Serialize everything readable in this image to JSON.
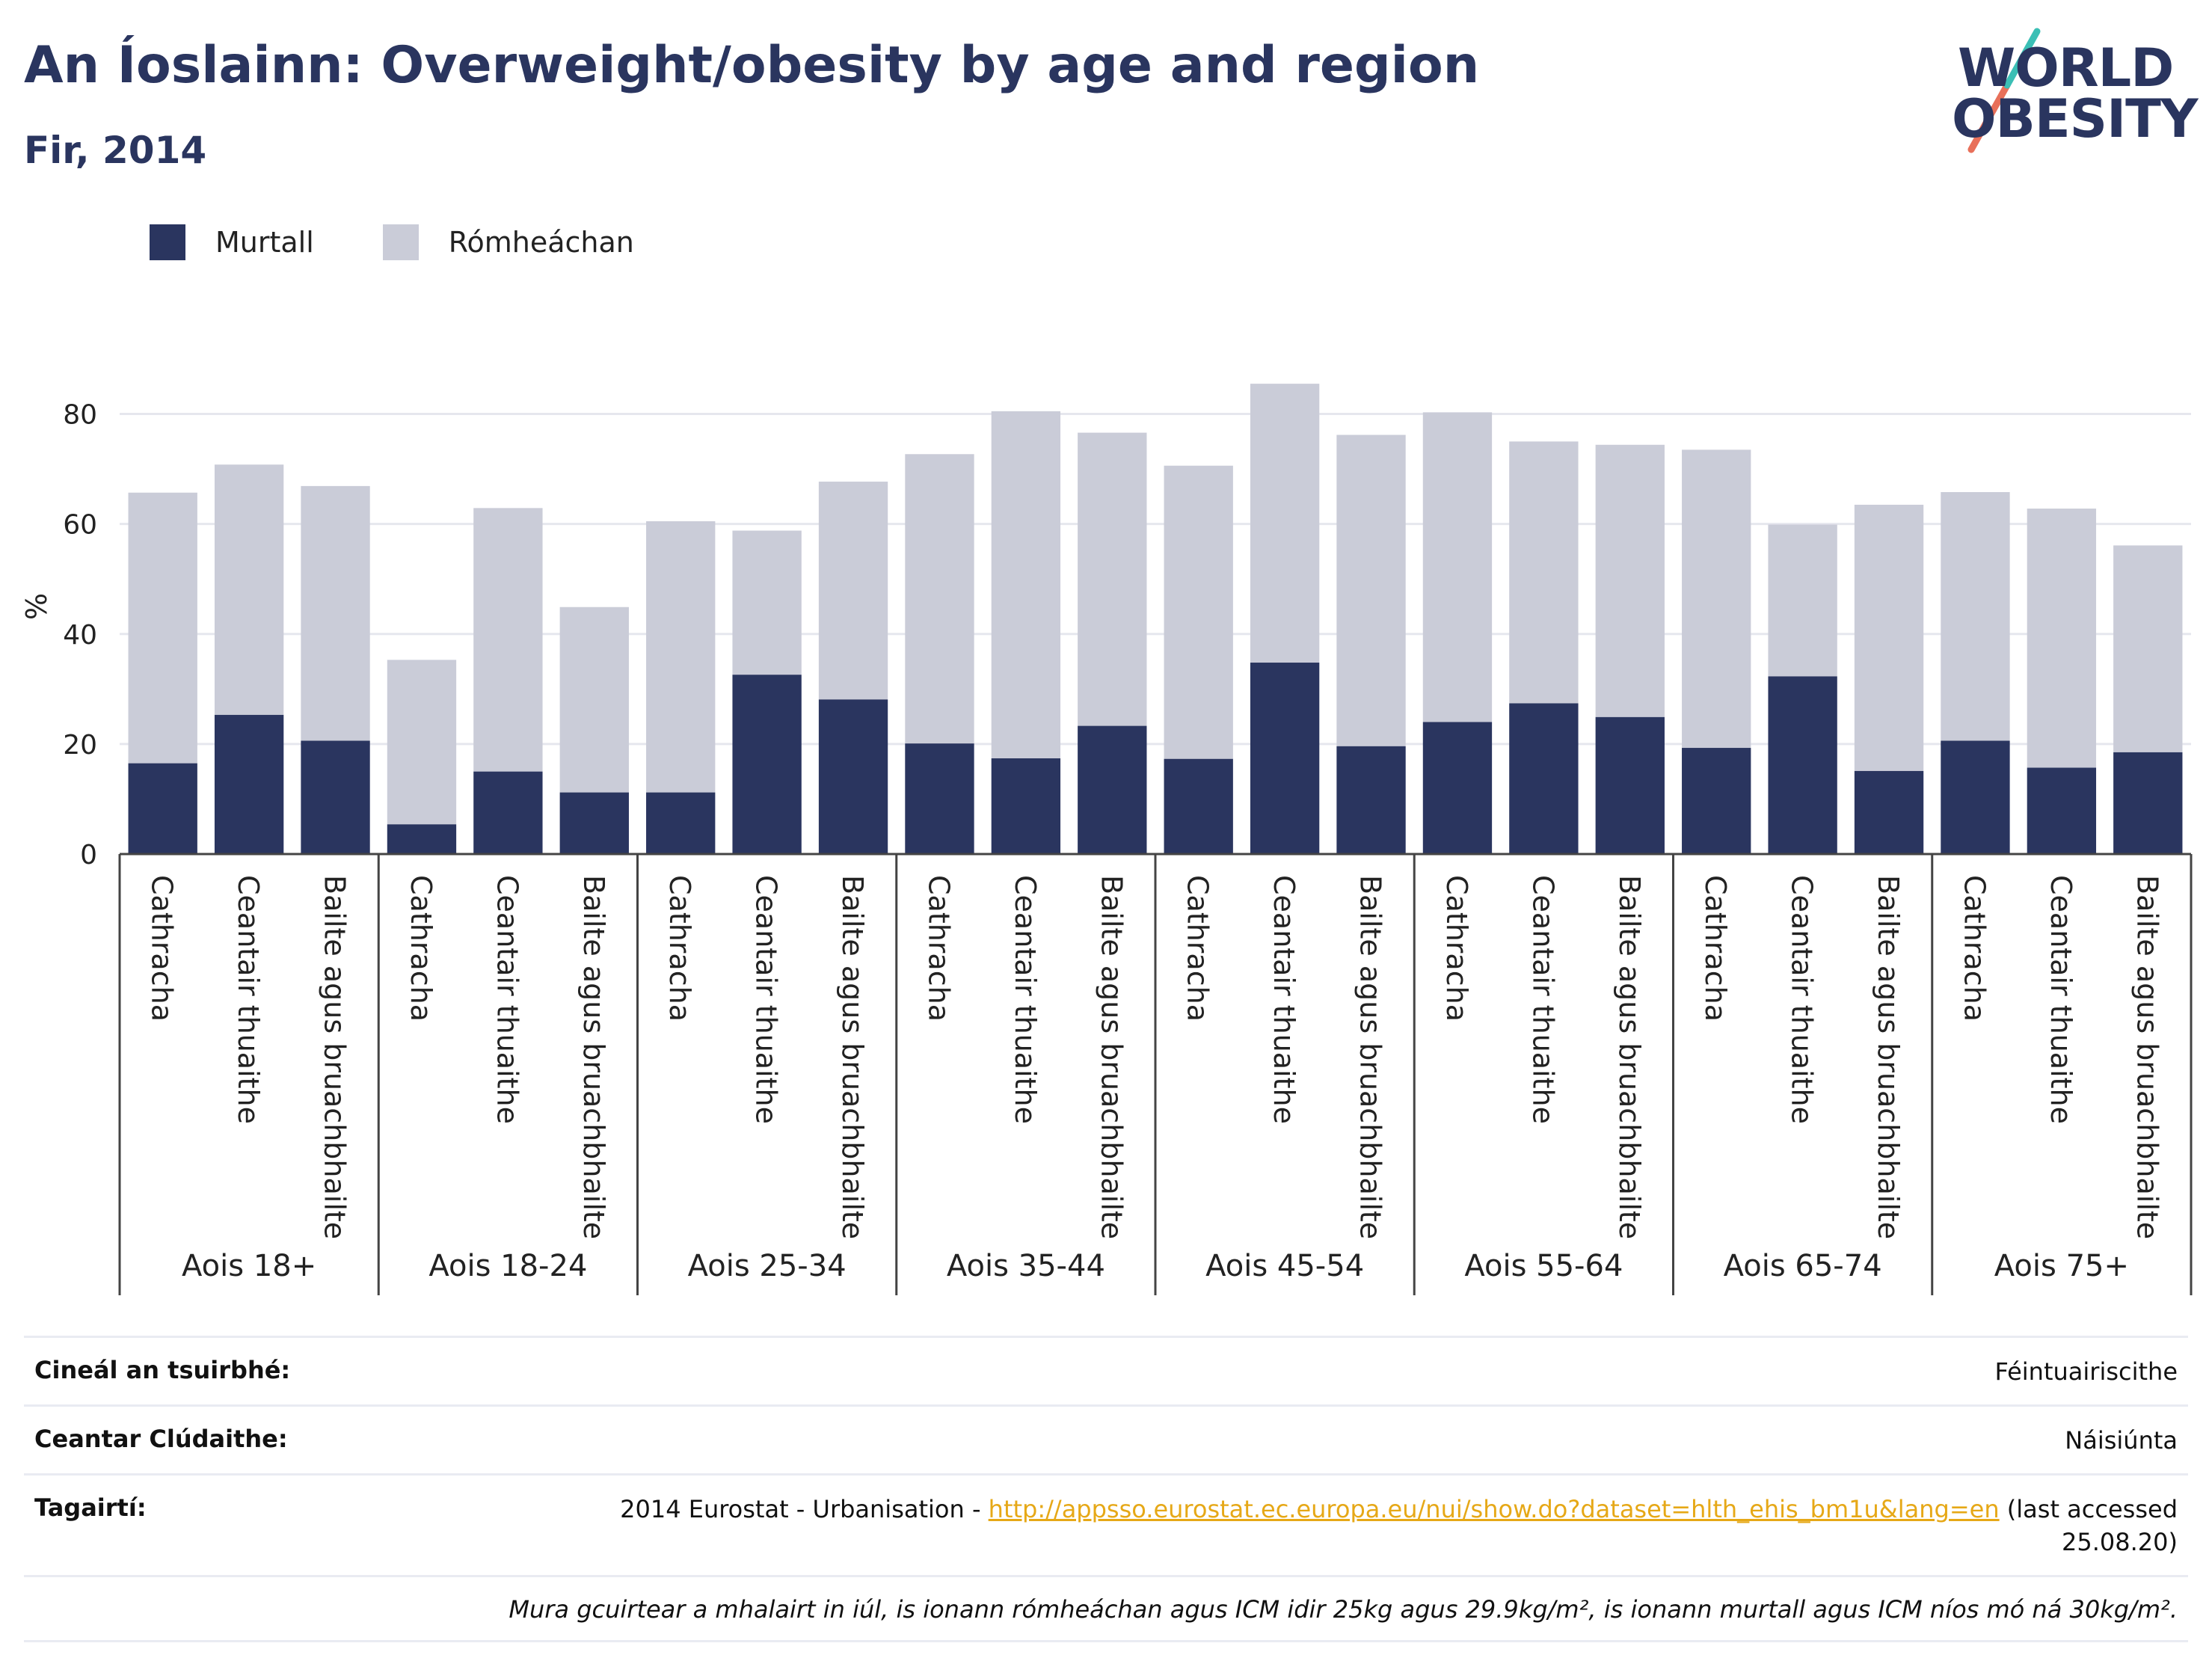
{
  "header": {
    "title": "An Íoslainn: Overweight/obesity by age and region",
    "subtitle": "Fir, 2014"
  },
  "logo": {
    "line1": "WORLD",
    "line2": "OBESITY"
  },
  "colors": {
    "obese": "#2a355f",
    "overweight": "#caccd8",
    "accent_teal": "#3bbfb5",
    "accent_red": "#e8705a"
  },
  "legend": [
    {
      "label": "Murtall",
      "color": "#2a355f"
    },
    {
      "label": "Rómheáchan",
      "color": "#caccd8"
    }
  ],
  "chart_data": {
    "type": "bar",
    "stacked": true,
    "ylabel": "%",
    "ylim": [
      0,
      90
    ],
    "yticks": [
      0,
      20,
      40,
      60,
      80
    ],
    "grid": true,
    "legend_position": "top-left",
    "groups": [
      "Aois 18+",
      "Aois 18-24",
      "Aois 25-34",
      "Aois 35-44",
      "Aois 45-54",
      "Aois 55-64",
      "Aois 65-74",
      "Aois 75+"
    ],
    "subcategories": [
      "Cathracha",
      "Ceantair thuaithe",
      "Bailte agus bruachbhailte"
    ],
    "series": [
      {
        "name": "Murtall",
        "values": [
          16.5,
          25.3,
          20.6,
          5.4,
          15.0,
          11.2,
          11.2,
          32.6,
          28.1,
          20.1,
          17.4,
          23.3,
          17.3,
          34.8,
          19.6,
          24.0,
          27.4,
          24.9,
          19.3,
          32.3,
          15.1,
          20.6,
          15.7,
          18.5
        ]
      },
      {
        "name": "Rómheáchan",
        "values": [
          49.2,
          45.5,
          46.3,
          29.9,
          47.9,
          33.7,
          49.3,
          26.2,
          39.6,
          52.6,
          63.1,
          53.3,
          53.3,
          50.7,
          56.6,
          56.3,
          47.6,
          49.5,
          54.2,
          27.6,
          48.4,
          45.2,
          47.1,
          37.6
        ]
      }
    ]
  },
  "info": {
    "survey_type_label": "Cineál an tsuirbhé:",
    "survey_type_value": "Féintuairiscithe",
    "coverage_label": "Ceantar Clúdaithe:",
    "coverage_value": "Náisiúnta",
    "references_label": "Tagairtí:",
    "references_prefix": "2014 Eurostat - Urbanisation - ",
    "references_link": "http://appsso.eurostat.ec.europa.eu/nui/show.do?dataset=hlth_ehis_bm1u&lang=en",
    "references_suffix": " (last accessed 25.08.20)",
    "note": "Mura gcuirtear a mhalairt in iúl, is ionann rómheáchan agus ICM idir 25kg agus 29.9kg/m², is ionann murtall agus ICM níos mó ná 30kg/m²."
  }
}
